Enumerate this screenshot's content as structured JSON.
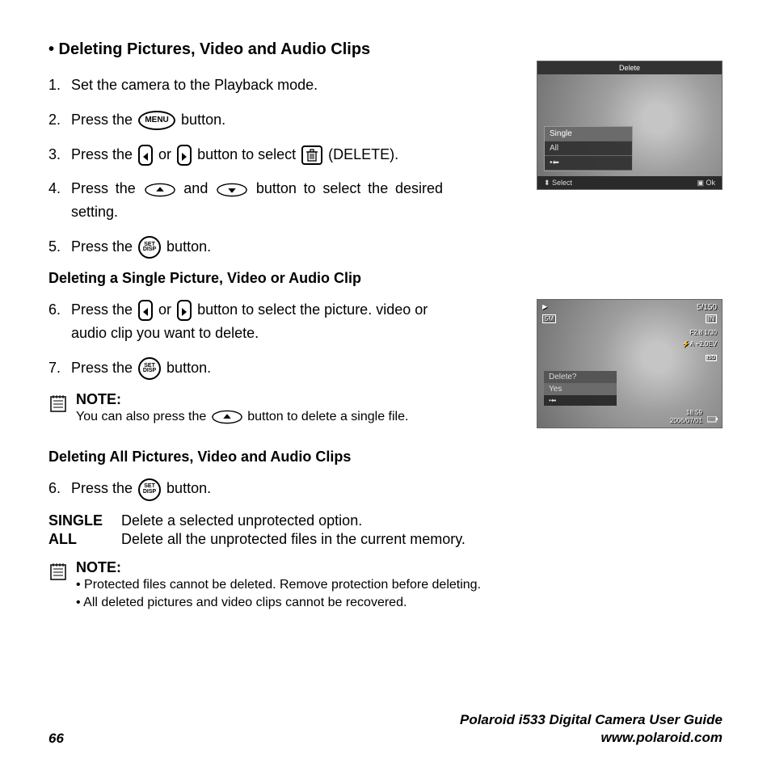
{
  "title": "• Deleting Pictures, Video and Audio Clips",
  "steps_main": [
    {
      "num": "1.",
      "parts": [
        "Set the camera to the Playback mode."
      ]
    },
    {
      "num": "2.",
      "parts": [
        "Press the ",
        {
          "icon": "menu"
        },
        " button."
      ]
    },
    {
      "num": "3.",
      "parts": [
        "Press the ",
        {
          "icon": "nav-left"
        },
        " or ",
        {
          "icon": "nav-right"
        },
        " button to select ",
        {
          "icon": "trash"
        },
        " (DELETE)."
      ]
    },
    {
      "num": "4.",
      "parts": [
        "Press the ",
        {
          "icon": "up"
        },
        " and ",
        {
          "icon": "down"
        },
        " button to select the desired setting."
      ],
      "justify": true
    },
    {
      "num": "5.",
      "parts": [
        "Press the ",
        {
          "icon": "set"
        },
        " button."
      ]
    }
  ],
  "subheading_single": "Deleting a Single Picture, Video or Audio Clip",
  "steps_single": [
    {
      "num": "6.",
      "parts": [
        "Press the ",
        {
          "icon": "nav-left"
        },
        " or ",
        {
          "icon": "nav-right"
        },
        " button to select the picture. video or audio clip you want to delete."
      ]
    },
    {
      "num": "7.",
      "parts": [
        "Press the ",
        {
          "icon": "set"
        },
        " button."
      ]
    }
  ],
  "note1": {
    "title": "NOTE:",
    "parts": [
      "You can also press the ",
      {
        "icon": "up"
      },
      " button to delete a single file."
    ]
  },
  "subheading_all": "Deleting All Pictures, Video and Audio Clips",
  "steps_all": [
    {
      "num": "6.",
      "parts": [
        "Press the ",
        {
          "icon": "set"
        },
        " button."
      ]
    }
  ],
  "definitions": [
    {
      "label": "SINGLE",
      "desc": "Delete a selected unprotected option."
    },
    {
      "label": "ALL",
      "desc": "Delete all the unprotected files in the current memory."
    }
  ],
  "note2": {
    "title": "NOTE:",
    "bullets": [
      "Protected files cannot be deleted. Remove protection before deleting.",
      "All deleted pictures and video clips cannot be recovered."
    ]
  },
  "screen1": {
    "header": "Delete",
    "menu_items": [
      {
        "label": "Single",
        "selected": true
      },
      {
        "label": "All",
        "selected": false
      }
    ],
    "dots": "•⬅",
    "footer_left": "⬍ Select",
    "footer_right": "▣ Ok"
  },
  "screen2": {
    "counter": "5/150",
    "badges": {
      "topleft1": "▶",
      "topleft2": "5M",
      "in": "IN",
      "f": "F2.8 1/30",
      "ev": "⚡A +2.0EV",
      "iso": "ISO",
      "time": "18:59",
      "date": "2006/07/01"
    },
    "menu_header": "Delete?",
    "menu_item": "Yes",
    "dots": "•⬅"
  },
  "footer": {
    "page": "66",
    "line1": "Polaroid i533 Digital Camera User Guide",
    "line2": "www.polaroid.com"
  },
  "icons": {
    "menu_label": "MENU",
    "set_line1": "SET",
    "set_line2": "DISP"
  },
  "colors": {
    "text": "#000000",
    "screen_bg": "#888888",
    "screen_header": "#333333",
    "screen_footer": "#2a2a2a"
  }
}
